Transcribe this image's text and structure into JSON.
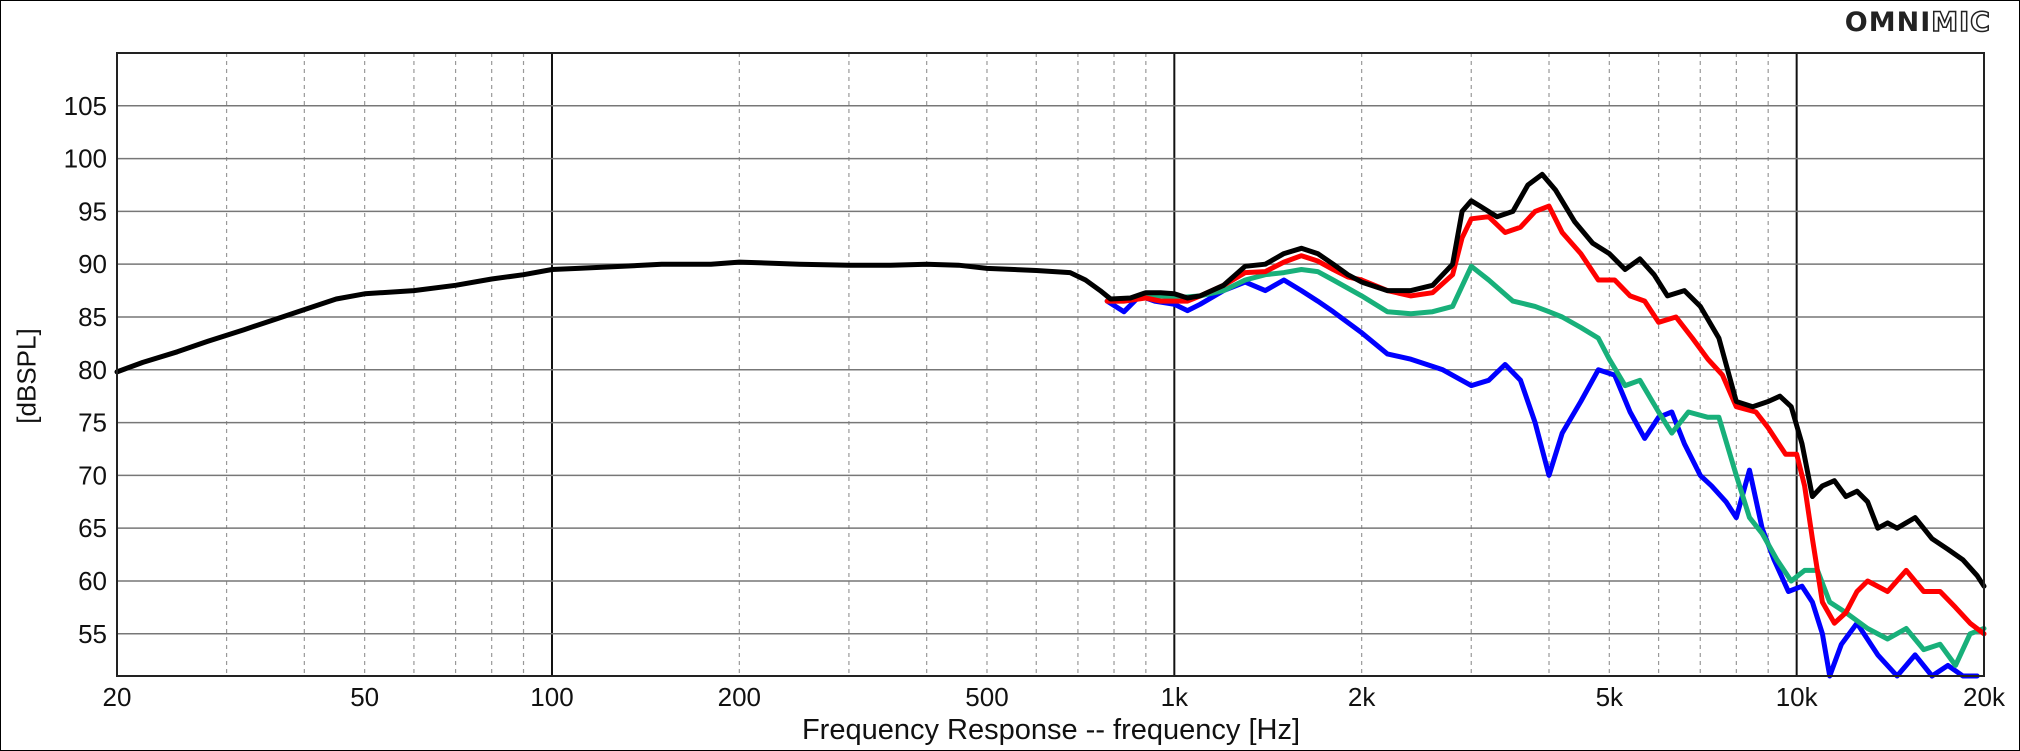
{
  "brand": {
    "logo_bold": "OMNI",
    "logo_outline": "MIC"
  },
  "chart_data": {
    "type": "line",
    "xlabel": "Frequency Response -- frequency [Hz]",
    "ylabel": "[dBSPL]",
    "x_scale": "log",
    "xlim": [
      20,
      20000
    ],
    "ylim": [
      51,
      110
    ],
    "x_ticks": [
      20,
      50,
      100,
      200,
      500,
      1000,
      2000,
      5000,
      10000,
      20000
    ],
    "x_tick_labels": [
      "20",
      "50",
      "100",
      "200",
      "500",
      "1k",
      "2k",
      "5k",
      "10k",
      "20k"
    ],
    "y_ticks": [
      55,
      60,
      65,
      70,
      75,
      80,
      85,
      90,
      95,
      100,
      105
    ],
    "y_tick_labels": [
      "55",
      "60",
      "65",
      "70",
      "75",
      "80",
      "85",
      "90",
      "95",
      "100",
      "105"
    ],
    "grid": true,
    "series": [
      {
        "color": "#0000ff",
        "points": [
          [
            780,
            86.5
          ],
          [
            830,
            85.5
          ],
          [
            880,
            87
          ],
          [
            930,
            86.5
          ],
          [
            1000,
            86.2
          ],
          [
            1050,
            85.6
          ],
          [
            1100,
            86.2
          ],
          [
            1200,
            87.5
          ],
          [
            1300,
            88.3
          ],
          [
            1400,
            87.5
          ],
          [
            1500,
            88.5
          ],
          [
            1600,
            87.5
          ],
          [
            1700,
            86.5
          ],
          [
            1800,
            85.5
          ],
          [
            2000,
            83.5
          ],
          [
            2200,
            81.5
          ],
          [
            2400,
            81
          ],
          [
            2700,
            80
          ],
          [
            3000,
            78.5
          ],
          [
            3200,
            79
          ],
          [
            3400,
            80.5
          ],
          [
            3600,
            79
          ],
          [
            3800,
            75
          ],
          [
            4000,
            70
          ],
          [
            4200,
            74
          ],
          [
            4500,
            77
          ],
          [
            4800,
            80
          ],
          [
            5100,
            79.5
          ],
          [
            5400,
            76
          ],
          [
            5700,
            73.5
          ],
          [
            6000,
            75.5
          ],
          [
            6300,
            76
          ],
          [
            6600,
            73
          ],
          [
            7000,
            70
          ],
          [
            7300,
            69
          ],
          [
            7700,
            67.5
          ],
          [
            8000,
            66
          ],
          [
            8400,
            70.5
          ],
          [
            8800,
            65
          ],
          [
            9200,
            62
          ],
          [
            9700,
            59
          ],
          [
            10200,
            59.5
          ],
          [
            10600,
            58
          ],
          [
            11000,
            55
          ],
          [
            11300,
            51
          ],
          [
            11800,
            54
          ],
          [
            12500,
            56
          ],
          [
            13500,
            53
          ],
          [
            14500,
            51
          ],
          [
            15500,
            53
          ],
          [
            16500,
            51
          ],
          [
            17500,
            52
          ],
          [
            18500,
            51
          ],
          [
            19500,
            51
          ]
        ]
      },
      {
        "color": "#18b07a",
        "points": [
          [
            780,
            86.5
          ],
          [
            830,
            86.5
          ],
          [
            880,
            86.8
          ],
          [
            950,
            87
          ],
          [
            1000,
            86.8
          ],
          [
            1100,
            87
          ],
          [
            1200,
            87.5
          ],
          [
            1300,
            88.5
          ],
          [
            1400,
            89
          ],
          [
            1500,
            89.2
          ],
          [
            1600,
            89.5
          ],
          [
            1700,
            89.3
          ],
          [
            1800,
            88.5
          ],
          [
            2000,
            87
          ],
          [
            2200,
            85.5
          ],
          [
            2400,
            85.3
          ],
          [
            2600,
            85.5
          ],
          [
            2800,
            86
          ],
          [
            3000,
            89.8
          ],
          [
            3200,
            88.5
          ],
          [
            3500,
            86.5
          ],
          [
            3800,
            86
          ],
          [
            4000,
            85.5
          ],
          [
            4200,
            85
          ],
          [
            4500,
            84
          ],
          [
            4800,
            83
          ],
          [
            5000,
            81
          ],
          [
            5300,
            78.5
          ],
          [
            5600,
            79
          ],
          [
            6000,
            76
          ],
          [
            6300,
            74
          ],
          [
            6700,
            76
          ],
          [
            7200,
            75.5
          ],
          [
            7500,
            75.5
          ],
          [
            8000,
            70
          ],
          [
            8400,
            66
          ],
          [
            8800,
            64.5
          ],
          [
            9300,
            62
          ],
          [
            9800,
            60
          ],
          [
            10300,
            61
          ],
          [
            10800,
            61
          ],
          [
            11300,
            58
          ],
          [
            12000,
            57
          ],
          [
            13000,
            55.5
          ],
          [
            14000,
            54.5
          ],
          [
            15000,
            55.5
          ],
          [
            16000,
            53.5
          ],
          [
            17000,
            54
          ],
          [
            18000,
            52
          ],
          [
            19000,
            55
          ],
          [
            20000,
            55.5
          ]
        ]
      },
      {
        "color": "#ff0000",
        "points": [
          [
            780,
            86.5
          ],
          [
            830,
            86.5
          ],
          [
            900,
            86.8
          ],
          [
            950,
            86.5
          ],
          [
            1000,
            86.5
          ],
          [
            1050,
            86.5
          ],
          [
            1100,
            87
          ],
          [
            1200,
            88
          ],
          [
            1300,
            89.2
          ],
          [
            1400,
            89.3
          ],
          [
            1500,
            90.2
          ],
          [
            1600,
            90.8
          ],
          [
            1700,
            90.3
          ],
          [
            1800,
            89.5
          ],
          [
            1900,
            88.8
          ],
          [
            2000,
            88.5
          ],
          [
            2200,
            87.5
          ],
          [
            2400,
            87
          ],
          [
            2600,
            87.3
          ],
          [
            2800,
            89
          ],
          [
            2900,
            92.5
          ],
          [
            3000,
            94.3
          ],
          [
            3200,
            94.5
          ],
          [
            3400,
            93
          ],
          [
            3600,
            93.5
          ],
          [
            3800,
            95
          ],
          [
            4000,
            95.5
          ],
          [
            4200,
            93
          ],
          [
            4500,
            91
          ],
          [
            4800,
            88.5
          ],
          [
            5100,
            88.5
          ],
          [
            5400,
            87
          ],
          [
            5700,
            86.5
          ],
          [
            6000,
            84.5
          ],
          [
            6400,
            85
          ],
          [
            6800,
            83
          ],
          [
            7200,
            81
          ],
          [
            7600,
            79.5
          ],
          [
            8000,
            76.5
          ],
          [
            8600,
            76
          ],
          [
            9000,
            74.5
          ],
          [
            9600,
            72
          ],
          [
            10000,
            72
          ],
          [
            10300,
            69
          ],
          [
            10600,
            64
          ],
          [
            11000,
            58
          ],
          [
            11500,
            56
          ],
          [
            12000,
            57
          ],
          [
            12500,
            59
          ],
          [
            13000,
            60
          ],
          [
            14000,
            59
          ],
          [
            15000,
            61
          ],
          [
            16000,
            59
          ],
          [
            17000,
            59
          ],
          [
            18000,
            57.5
          ],
          [
            19000,
            56
          ],
          [
            20000,
            55
          ]
        ]
      },
      {
        "color": "#000000",
        "points": [
          [
            20,
            79.8
          ],
          [
            22,
            80.7
          ],
          [
            25,
            81.7
          ],
          [
            28,
            82.7
          ],
          [
            32,
            83.8
          ],
          [
            36,
            84.8
          ],
          [
            40,
            85.7
          ],
          [
            45,
            86.7
          ],
          [
            50,
            87.2
          ],
          [
            60,
            87.5
          ],
          [
            70,
            88
          ],
          [
            80,
            88.6
          ],
          [
            90,
            89
          ],
          [
            100,
            89.5
          ],
          [
            110,
            89.6
          ],
          [
            130,
            89.8
          ],
          [
            150,
            90
          ],
          [
            180,
            90
          ],
          [
            200,
            90.2
          ],
          [
            250,
            90
          ],
          [
            300,
            89.9
          ],
          [
            350,
            89.9
          ],
          [
            400,
            90
          ],
          [
            450,
            89.9
          ],
          [
            500,
            89.6
          ],
          [
            600,
            89.4
          ],
          [
            680,
            89.2
          ],
          [
            720,
            88.5
          ],
          [
            760,
            87.5
          ],
          [
            790,
            86.7
          ],
          [
            850,
            86.8
          ],
          [
            900,
            87.3
          ],
          [
            950,
            87.3
          ],
          [
            1000,
            87.2
          ],
          [
            1050,
            86.8
          ],
          [
            1100,
            87
          ],
          [
            1200,
            88
          ],
          [
            1300,
            89.8
          ],
          [
            1400,
            90
          ],
          [
            1500,
            91
          ],
          [
            1600,
            91.5
          ],
          [
            1700,
            91
          ],
          [
            1800,
            90
          ],
          [
            1900,
            89
          ],
          [
            2000,
            88.3
          ],
          [
            2200,
            87.5
          ],
          [
            2400,
            87.5
          ],
          [
            2600,
            88
          ],
          [
            2800,
            90
          ],
          [
            2900,
            95
          ],
          [
            3000,
            96
          ],
          [
            3100,
            95.5
          ],
          [
            3300,
            94.5
          ],
          [
            3500,
            95
          ],
          [
            3700,
            97.5
          ],
          [
            3900,
            98.5
          ],
          [
            4100,
            97
          ],
          [
            4400,
            94
          ],
          [
            4700,
            92
          ],
          [
            5000,
            91
          ],
          [
            5300,
            89.5
          ],
          [
            5600,
            90.5
          ],
          [
            5900,
            89
          ],
          [
            6200,
            87
          ],
          [
            6600,
            87.5
          ],
          [
            7000,
            86
          ],
          [
            7500,
            83
          ],
          [
            8000,
            77
          ],
          [
            8500,
            76.5
          ],
          [
            9000,
            77
          ],
          [
            9400,
            77.5
          ],
          [
            9800,
            76.5
          ],
          [
            10200,
            73
          ],
          [
            10600,
            68
          ],
          [
            11000,
            69
          ],
          [
            11500,
            69.5
          ],
          [
            12000,
            68
          ],
          [
            12500,
            68.5
          ],
          [
            13000,
            67.5
          ],
          [
            13500,
            65
          ],
          [
            14000,
            65.5
          ],
          [
            14500,
            65
          ],
          [
            15500,
            66
          ],
          [
            16500,
            64
          ],
          [
            17500,
            63
          ],
          [
            18500,
            62
          ],
          [
            19500,
            60.5
          ],
          [
            20000,
            59.5
          ]
        ]
      }
    ]
  }
}
